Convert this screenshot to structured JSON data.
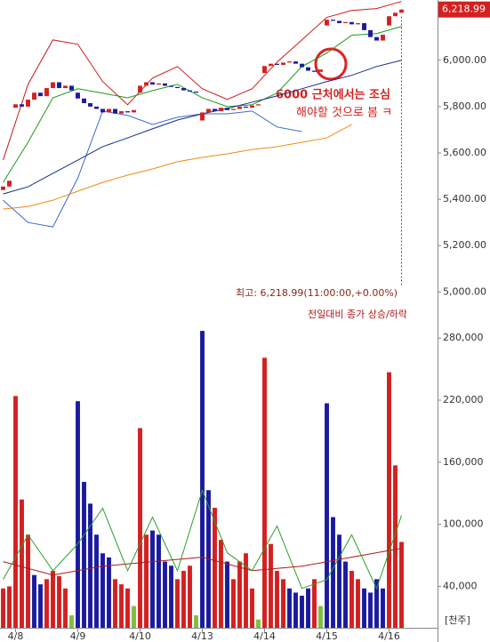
{
  "chart_data": {
    "type": "candlestick",
    "xlim": [
      -0.5,
      69.5
    ],
    "categories": [
      null,
      null,
      "4/8",
      null,
      null,
      null,
      null,
      null,
      null,
      null,
      null,
      null,
      "4/9",
      null,
      null,
      null,
      null,
      null,
      null,
      null,
      null,
      null,
      "4/10",
      null,
      null,
      null,
      null,
      null,
      null,
      null,
      null,
      null,
      "4/13",
      null,
      null,
      null,
      null,
      null,
      null,
      null,
      null,
      null,
      "4/14",
      null,
      null,
      null,
      null,
      null,
      null,
      null,
      null,
      null,
      "4/15",
      null,
      null,
      null,
      null,
      null,
      null,
      null,
      null,
      null,
      "4/16",
      null,
      null
    ],
    "price": {
      "ylim": [
        4940,
        6260
      ],
      "yticks": [
        {
          "value": 5000,
          "label": "5,000.00"
        },
        {
          "value": 5200,
          "label": "5,200.00"
        },
        {
          "value": 5400,
          "label": "5,400.00"
        },
        {
          "value": 5600,
          "label": "5,600.00"
        },
        {
          "value": 5800,
          "label": "5,800.00"
        },
        {
          "value": 6000,
          "label": "6,000.00"
        }
      ],
      "up_color": "#d42020",
      "down_color": "#1a1aa0",
      "open": [
        5440,
        5455,
        5795,
        5810,
        5800,
        5830,
        5860,
        5845,
        5880,
        5905,
        5880,
        5890,
        5860,
        5835,
        5815,
        5800,
        5790,
        5775,
        5790,
        5770,
        5780,
        5775,
        5860,
        5890,
        5905,
        5895,
        5900,
        5890,
        5885,
        5880,
        5870,
        5865,
        5740,
        5775,
        5790,
        5780,
        5795,
        5785,
        5790,
        5800,
        5795,
        5805,
        5945,
        5975,
        5985,
        5980,
        5990,
        5995,
        5985,
        5970,
        5955,
        5950,
        6150,
        6175,
        6170,
        6160,
        6165,
        6155,
        6160,
        6130,
        6100,
        6085,
        6150,
        6190,
        6205
      ],
      "close": [
        5455,
        5480,
        5810,
        5800,
        5830,
        5860,
        5845,
        5880,
        5905,
        5880,
        5890,
        5870,
        5835,
        5815,
        5800,
        5790,
        5775,
        5790,
        5770,
        5780,
        5775,
        5785,
        5890,
        5905,
        5895,
        5900,
        5890,
        5885,
        5880,
        5870,
        5865,
        5860,
        5775,
        5790,
        5780,
        5795,
        5785,
        5790,
        5800,
        5795,
        5805,
        5810,
        5975,
        5985,
        5980,
        5990,
        5995,
        5985,
        5970,
        5955,
        5950,
        5960,
        6175,
        6170,
        6160,
        6165,
        6155,
        6160,
        6130,
        6100,
        6085,
        6110,
        6190,
        6205,
        6218.99
      ],
      "current_price_label": "6,218.99",
      "overlays": [
        {
          "color": "#d01818",
          "x": [
            0,
            4,
            8,
            12,
            16,
            20,
            24,
            28,
            32,
            36,
            40,
            44,
            48,
            52,
            56,
            60,
            64
          ],
          "values": [
            5569,
            5896,
            6088,
            6069,
            5908,
            5808,
            5923,
            5973,
            5877,
            5831,
            5877,
            5992,
            6088,
            6185,
            6215,
            6223,
            6254
          ]
        },
        {
          "color": "#3a6ad0",
          "x": [
            0,
            4,
            8,
            12,
            16,
            20,
            24,
            28,
            32,
            36,
            40,
            44,
            48,
            52,
            56,
            60,
            64
          ],
          "values": [
            5396,
            5300,
            5281,
            5492,
            5781,
            5762,
            5723,
            5754,
            5769,
            5769,
            5781,
            5712,
            5692,
            null,
            null,
            null,
            null
          ]
        },
        {
          "color": "#1a9a1a",
          "x": [
            0,
            4,
            8,
            12,
            16,
            20,
            24,
            28,
            32,
            36,
            40,
            44,
            48,
            52,
            56,
            60,
            64
          ],
          "values": [
            5473,
            5646,
            5838,
            5877,
            5858,
            5838,
            5869,
            5896,
            5838,
            5800,
            5808,
            5858,
            5973,
            6031,
            6108,
            6115,
            6146
          ]
        },
        {
          "color": "#1a2a8a",
          "x": [
            0,
            4,
            8,
            12,
            16,
            20,
            24,
            28,
            32,
            36,
            40,
            44,
            48,
            52,
            56,
            60,
            64
          ],
          "values": [
            5423,
            5454,
            5512,
            5569,
            5627,
            5665,
            5704,
            5742,
            5769,
            5792,
            5819,
            5846,
            5877,
            5908,
            5935,
            5973,
            6000
          ]
        },
        {
          "color": "#f08a10",
          "x": [
            0,
            4,
            8,
            12,
            16,
            20,
            24,
            28,
            32,
            36,
            40,
            44,
            48,
            52,
            56,
            60,
            64
          ],
          "values": [
            5358,
            5369,
            5396,
            5435,
            5473,
            5504,
            5531,
            5562,
            5581,
            5596,
            5615,
            5627,
            5646,
            5665,
            5723,
            null,
            null
          ]
        }
      ]
    },
    "volume": {
      "ylim": [
        0,
        306000
      ],
      "yticks": [
        {
          "value": 40000,
          "label": "40,000"
        },
        {
          "value": 100000,
          "label": "100,000"
        },
        {
          "value": 160000,
          "label": "160,000"
        },
        {
          "value": 220000,
          "label": "220,000"
        },
        {
          "value": 280000,
          "label": "280,000"
        }
      ],
      "unit": "[천주]",
      "values": [
        38000,
        40000,
        224000,
        124000,
        90000,
        51000,
        42000,
        47000,
        55000,
        50000,
        38000,
        12000,
        219000,
        141000,
        120000,
        90000,
        72000,
        68000,
        47000,
        42000,
        38000,
        21000,
        193000,
        90000,
        94000,
        90000,
        64000,
        60000,
        47000,
        55000,
        60000,
        12000,
        287000,
        133000,
        116000,
        85000,
        64000,
        47000,
        64000,
        72000,
        38000,
        8000,
        261000,
        81000,
        55000,
        47000,
        38000,
        34000,
        31000,
        38000,
        47000,
        21000,
        217000,
        107000,
        90000,
        64000,
        55000,
        47000,
        38000,
        34000,
        47000,
        38000,
        247000,
        157000,
        83000
      ],
      "colors": [
        "#d42020",
        "#d42020",
        "#d42020",
        "#d42020",
        "#d42020",
        "#1a1aa0",
        "#1a1aa0",
        "#d42020",
        "#d42020",
        "#d42020",
        "#d42020",
        "#7cc040",
        "#1a1aa0",
        "#1a1aa0",
        "#1a1aa0",
        "#1a1aa0",
        "#1a1aa0",
        "#1a1aa0",
        "#d42020",
        "#d42020",
        "#d42020",
        "#7cc040",
        "#d42020",
        "#d42020",
        "#1a1aa0",
        "#1a1aa0",
        "#1a1aa0",
        "#1a1aa0",
        "#d42020",
        "#d42020",
        "#d42020",
        "#7cc040",
        "#1a1aa0",
        "#1a1aa0",
        "#d42020",
        "#d42020",
        "#1a1aa0",
        "#d42020",
        "#d42020",
        "#d42020",
        "#d42020",
        "#7cc040",
        "#d42020",
        "#d42020",
        "#d42020",
        "#d42020",
        "#1a1aa0",
        "#1a1aa0",
        "#1a1aa0",
        "#1a1aa0",
        "#d42020",
        "#7cc040",
        "#1a1aa0",
        "#1a1aa0",
        "#1a1aa0",
        "#1a1aa0",
        "#d42020",
        "#d42020",
        "#1a1aa0",
        "#1a1aa0",
        "#1a1aa0",
        "#1a1aa0",
        "#d42020",
        "#d42020",
        "#d42020"
      ],
      "overlays": [
        {
          "color": "#b01818",
          "x": [
            0,
            8,
            16,
            24,
            32,
            40,
            48,
            56,
            64
          ],
          "values": [
            63900,
            50900,
            59500,
            63900,
            68200,
            55200,
            59500,
            68200,
            76800
          ]
        },
        {
          "color": "#2aa02a",
          "x": [
            0,
            4,
            8,
            12,
            16,
            20,
            24,
            28,
            32,
            36,
            40,
            44,
            48,
            52,
            56,
            60,
            64
          ],
          "values": [
            46600,
            89800,
            55200,
            81100,
            115600,
            55200,
            107000,
            55200,
            132900,
            72500,
            55200,
            98400,
            38000,
            46600,
            89800,
            38000,
            108700
          ]
        }
      ]
    },
    "annotations": {
      "note_lines": [
        "6000 근처에서는 조심",
        "해야할 것으로 봄 ㅋ"
      ],
      "high_note": "최고: 6,218.99(11:00:00,+0.00%)",
      "legend_note": "전일대비 종가 상승/하락"
    }
  }
}
